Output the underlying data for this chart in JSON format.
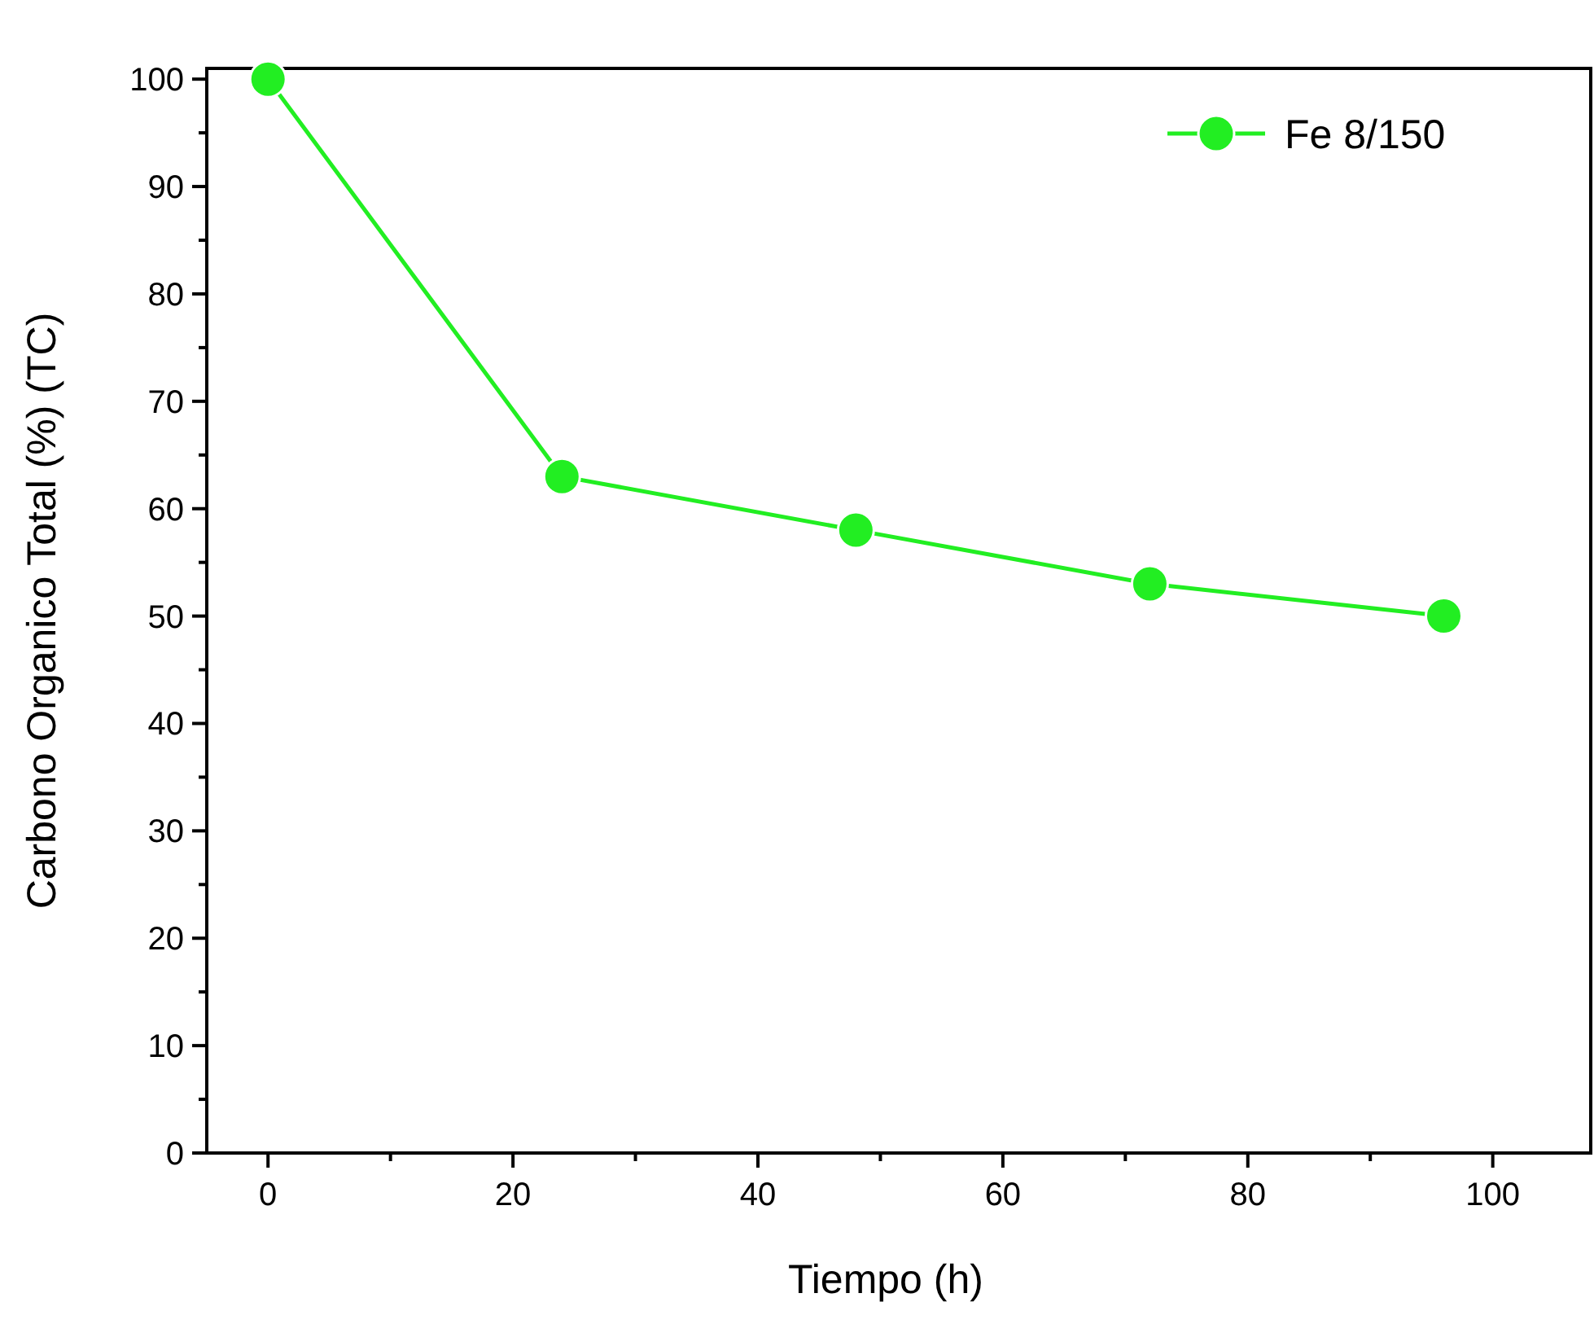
{
  "chart_data": {
    "type": "line",
    "xlabel": "Tiempo (h)",
    "ylabel": "Carbono Organico Total (%) (TC)",
    "x": [
      0,
      24,
      48,
      72,
      96
    ],
    "series": [
      {
        "name": "Fe 8/150",
        "color": "#22ee22",
        "values": [
          100,
          63,
          58,
          53,
          50
        ]
      }
    ],
    "xlim": [
      -5,
      108
    ],
    "ylim": [
      0,
      101
    ],
    "xticks": [
      0,
      {
        "value": 10,
        "label": null
      },
      20,
      {
        "value": 30,
        "label": null
      },
      40,
      {
        "value": 50,
        "label": null
      },
      60,
      {
        "value": 70,
        "label": null
      },
      80,
      {
        "value": 90,
        "label": null
      },
      100
    ],
    "yticks": [
      0,
      {
        "value": 5,
        "label": null
      },
      10,
      {
        "value": 15,
        "label": null
      },
      20,
      {
        "value": 25,
        "label": null
      },
      30,
      {
        "value": 35,
        "label": null
      },
      40,
      {
        "value": 45,
        "label": null
      },
      50,
      {
        "value": 55,
        "label": null
      },
      60,
      {
        "value": 65,
        "label": null
      },
      70,
      {
        "value": 75,
        "label": null
      },
      80,
      {
        "value": 85,
        "label": null
      },
      90,
      {
        "value": 95,
        "label": null
      },
      100
    ],
    "legend": "top right",
    "marker": "circle",
    "line_style": "solid",
    "grid": false
  }
}
